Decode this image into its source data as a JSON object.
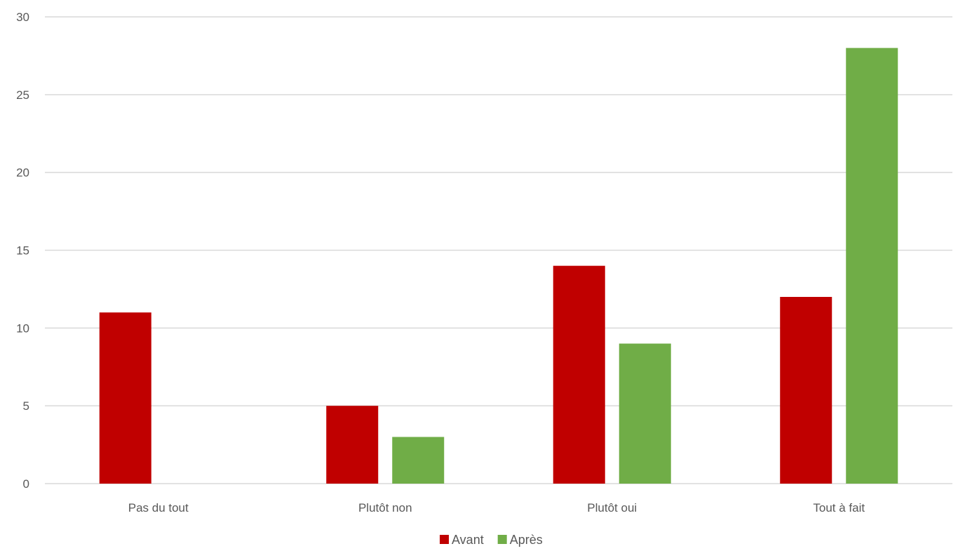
{
  "chart_data": {
    "type": "bar",
    "categories": [
      "Pas du tout",
      "Plutôt non",
      "Plutôt oui",
      "Tout à fait"
    ],
    "series": [
      {
        "name": "Avant",
        "color": "#c00000",
        "values": [
          11,
          5,
          14,
          12
        ]
      },
      {
        "name": "Après",
        "color": "#70ad47",
        "values": [
          0,
          3,
          9,
          28
        ]
      }
    ],
    "y_ticks": [
      "0",
      "5",
      "10",
      "15",
      "20",
      "25",
      "30"
    ],
    "ylim": [
      0,
      30
    ],
    "grid": true,
    "legend_position": "bottom"
  }
}
